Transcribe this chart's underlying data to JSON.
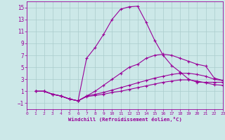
{
  "bg_color": "#cce8e8",
  "grid_color": "#aacccc",
  "line_color": "#990099",
  "xlim": [
    0,
    23
  ],
  "ylim": [
    -2,
    16
  ],
  "xticks": [
    0,
    1,
    2,
    3,
    4,
    5,
    6,
    7,
    8,
    9,
    10,
    11,
    12,
    13,
    14,
    15,
    16,
    17,
    18,
    19,
    20,
    21,
    22,
    23
  ],
  "yticks": [
    -1,
    1,
    3,
    5,
    7,
    9,
    11,
    13,
    15
  ],
  "xlabel": "Windchill (Refroidissement éolien,°C)",
  "lines": [
    {
      "x": [
        1,
        2,
        3,
        4,
        5,
        6,
        7,
        8,
        9,
        10,
        11,
        12,
        13,
        14,
        15,
        16,
        17,
        18,
        19,
        20,
        21,
        22,
        23
      ],
      "y": [
        1.0,
        1.0,
        0.5,
        0.2,
        -0.3,
        -0.6,
        6.5,
        8.3,
        10.5,
        13.0,
        14.7,
        15.1,
        15.2,
        12.5,
        9.5,
        7.0,
        5.3,
        4.2,
        3.0,
        2.5,
        2.5,
        2.5,
        2.5
      ]
    },
    {
      "x": [
        1,
        2,
        3,
        4,
        5,
        6,
        7,
        8,
        9,
        10,
        11,
        12,
        13,
        14,
        15,
        16,
        17,
        18,
        19,
        20,
        21,
        22,
        23
      ],
      "y": [
        1.0,
        1.0,
        0.5,
        0.2,
        -0.3,
        -0.6,
        0.2,
        1.0,
        2.0,
        3.0,
        4.0,
        5.0,
        5.5,
        6.5,
        7.0,
        7.2,
        7.0,
        6.5,
        6.0,
        5.5,
        5.2,
        3.2,
        2.8
      ]
    },
    {
      "x": [
        1,
        2,
        3,
        4,
        5,
        6,
        7,
        8,
        9,
        10,
        11,
        12,
        13,
        14,
        15,
        16,
        17,
        18,
        19,
        20,
        21,
        22,
        23
      ],
      "y": [
        1.0,
        1.0,
        0.5,
        0.2,
        -0.3,
        -0.6,
        0.2,
        0.5,
        0.8,
        1.2,
        1.6,
        2.0,
        2.4,
        2.8,
        3.2,
        3.5,
        3.8,
        4.0,
        4.0,
        3.8,
        3.5,
        3.0,
        2.8
      ]
    },
    {
      "x": [
        1,
        2,
        3,
        4,
        5,
        6,
        7,
        8,
        9,
        10,
        11,
        12,
        13,
        14,
        15,
        16,
        17,
        18,
        19,
        20,
        21,
        22,
        23
      ],
      "y": [
        1.0,
        1.0,
        0.5,
        0.2,
        -0.3,
        -0.6,
        0.1,
        0.3,
        0.5,
        0.8,
        1.0,
        1.3,
        1.6,
        1.9,
        2.2,
        2.5,
        2.7,
        2.9,
        2.9,
        2.7,
        2.4,
        2.1,
        2.0
      ]
    }
  ]
}
